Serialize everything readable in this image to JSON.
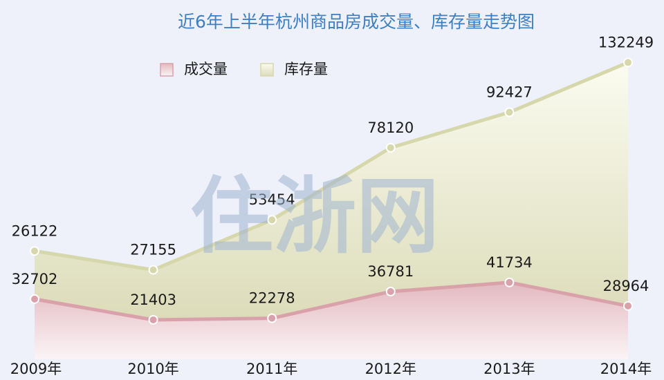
{
  "chart_data": {
    "type": "area",
    "stacked": true,
    "title": "近6年上半年杭州商品房成交量、库存量走势图",
    "watermark": "住浙网",
    "categories": [
      "2009年",
      "2010年",
      "2011年",
      "2012年",
      "2013年",
      "2014年"
    ],
    "series": [
      {
        "name": "成交量",
        "color": "#d9a1aa",
        "values": [
          32702,
          21403,
          22278,
          36781,
          41734,
          28964
        ]
      },
      {
        "name": "库存量",
        "color": "#d6d8ac",
        "values": [
          26122,
          27155,
          53454,
          78120,
          92427,
          132249
        ]
      }
    ],
    "ylim": [
      0,
      170000
    ],
    "legend": "top-left"
  }
}
